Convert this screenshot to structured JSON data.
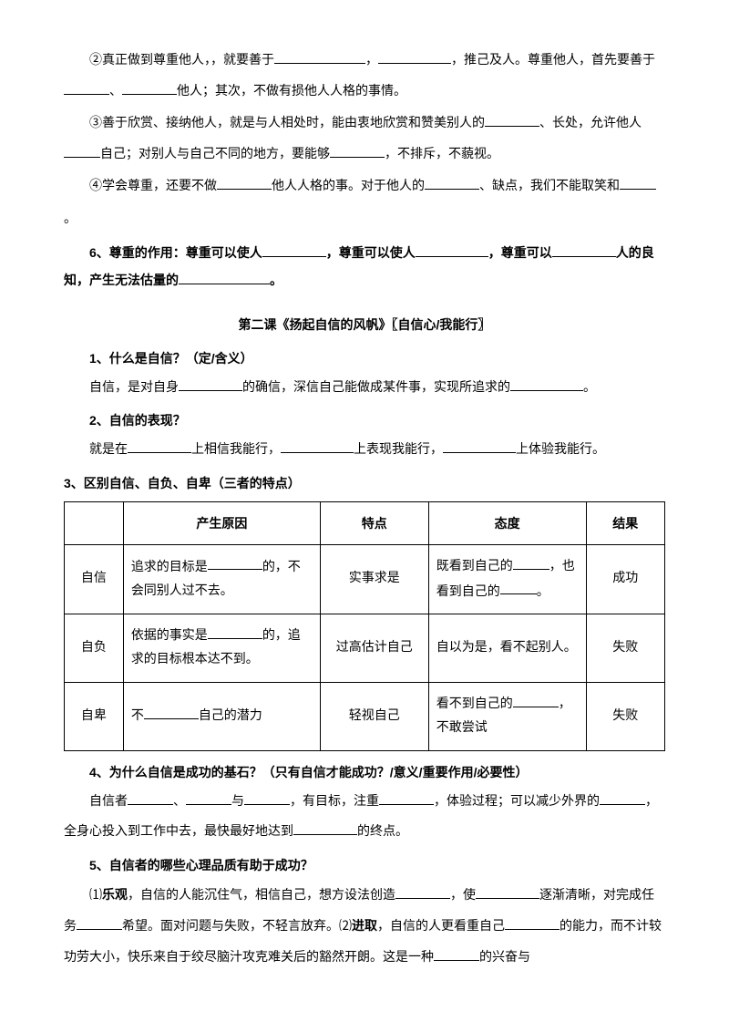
{
  "p1": {
    "pre": "②真正做到尊重他人，，就要善于",
    "mid1": "，",
    "mid2": "，推己及人。尊重他人，首先要善于",
    "mid3": "、",
    "post": "他人；其次，不做有损他人人格的事情。"
  },
  "p2": {
    "pre": "③善于欣赏、接纳他人，就是与人相处时，能由衷地欣赏和赞美别人的",
    "mid1": "、长处，允许他人",
    "mid2": "自己；对别人与自己不同的地方，要能够",
    "post": "，不排斥，不藐视。"
  },
  "p3": {
    "pre": "④学会尊重，还要不做",
    "mid1": "他人人格的事。对于他人的",
    "post": "、缺点，我们不能取笑和"
  },
  "p3b": "。",
  "q6": {
    "label": "6、尊重的作用：尊重可以使人",
    "mid1": "，尊重可以使人",
    "mid2": "，尊重可以",
    "mid3": "人的良知，产生无法估量的",
    "end": "。"
  },
  "section": "第二课《扬起自信的风帆》〖自信心/我能行〗",
  "q1": {
    "label": "1、什么是自信？（定/含义）",
    "a_pre": "自信，是对自身",
    "a_mid": "的确信，深信自己能做成某件事，实现所追求的",
    "a_end": "。"
  },
  "q2": {
    "label": "2、自信的表现？",
    "a_pre": "就是在",
    "a_mid1": "上相信我能行，",
    "a_mid2": "上表现我能行，",
    "a_end": "上体验我能行。"
  },
  "q3": "3、区别自信、自负、自卑（三者的特点）",
  "table": {
    "headers": [
      "",
      "产生原因",
      "特点",
      "态度",
      "结果"
    ],
    "rows": [
      {
        "label": "自信",
        "cause_pre": "追求的目标是",
        "cause_post": "的，不会同别人过不去。",
        "feature": "实事求是",
        "att_pre": "既看到自己的",
        "att_mid": "，也看到自己的",
        "att_end": "。",
        "result": "成功"
      },
      {
        "label": "自负",
        "cause_pre": "依据的事实是",
        "cause_post": "的，追求的目标根本达不到。",
        "feature": "过高估计自己",
        "attitude": "自以为是，看不起别人。",
        "result": "失败"
      },
      {
        "label": "自卑",
        "cause_pre": "不",
        "cause_post": "自己的潜力",
        "feature": "轻视自己",
        "att_pre": "看不到自己的",
        "att_end": "，不敢尝试",
        "result": "失败"
      }
    ]
  },
  "q4": {
    "label": "4、为什么自信是成功的基石？（只有自信才能成功？/意义/重要作用/必要性）",
    "a_pre": "自信者",
    "a_s1": "、",
    "a_s2": "与",
    "a_mid1": "，有目标，注重",
    "a_mid2": "，体验过程；可以减少外界的",
    "a_mid3": "，全身心投入到工作中去，最快最好地达到",
    "a_end": "的终点。"
  },
  "q5": {
    "label": "5、自信者的哪些心理品质有助于成功？",
    "a_pre": "⑴",
    "bold1": "乐观",
    "a1": "，自信的人能沉住气，相信自己，想方设法创造",
    "a2": "，使",
    "a3": "逐渐清晰，对完成任务",
    "a4": "希望。面对问题与失败，不轻言放弃。⑵",
    "bold2": "进取",
    "a5": "，自信的人更看重自己",
    "a6": "的能力，而不计较功劳大小，快乐来自于绞尽脑汁攻克难关后的豁然开朗。这是一种",
    "a7": "的兴奋与"
  }
}
